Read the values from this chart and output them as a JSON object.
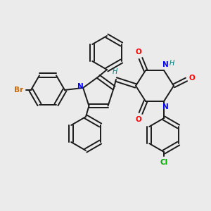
{
  "background_color": "#ebebeb",
  "bond_color": "#1a1a1a",
  "N_color": "#0000ff",
  "O_color": "#ff0000",
  "Br_color": "#cc6600",
  "Cl_color": "#00aa00",
  "H_color": "#008080",
  "figsize": [
    3.0,
    3.0
  ],
  "dpi": 100,
  "xlim": [
    0,
    300
  ],
  "ylim": [
    0,
    300
  ]
}
